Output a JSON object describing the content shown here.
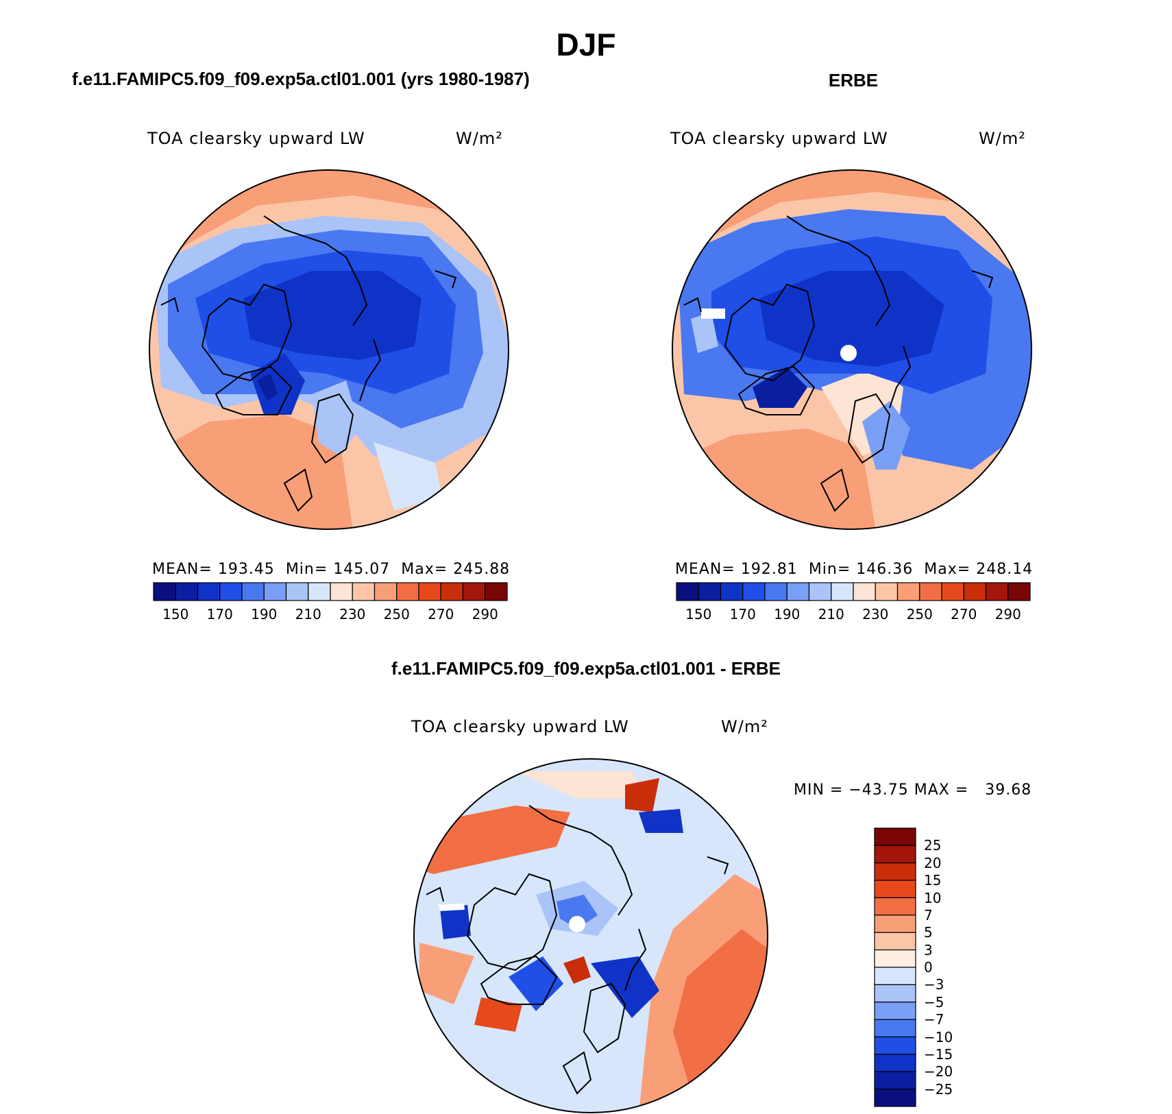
{
  "figure": {
    "main_title": "DJF"
  },
  "panels": [
    {
      "id": "model",
      "header": "f.e11.FAMIPC5.f09_f09.exp5a.ctl01.001 (yrs 1980-1987)",
      "variable": "TOA clearsky upward LW",
      "units": "W/m²",
      "stats": {
        "mean_label": "MEAN=",
        "mean": "193.45",
        "min_label": "Min=",
        "min": "145.07",
        "max_label": "Max=",
        "max": "245.88"
      }
    },
    {
      "id": "obs",
      "header": "ERBE",
      "variable": "TOA clearsky upward LW",
      "units": "W/m²",
      "stats": {
        "mean_label": "MEAN=",
        "mean": "192.81",
        "min_label": "Min=",
        "min": "146.36",
        "max_label": "Max=",
        "max": "248.14"
      }
    },
    {
      "id": "diff",
      "header": "f.e11.FAMIPC5.f09_f09.exp5a.ctl01.001 - ERBE",
      "variable": "TOA clearsky upward LW",
      "units": "W/m²",
      "stats_text": "MIN = −43.75 MAX =   39.68"
    }
  ],
  "colorbars": {
    "absolute": {
      "colors": [
        "#0a0f80",
        "#0a1fa0",
        "#0f33c7",
        "#1f4fe6",
        "#4a78f0",
        "#7aa0f5",
        "#aac4f8",
        "#d7e6fb",
        "#fde4d4",
        "#fbc6a8",
        "#f89f78",
        "#f26f45",
        "#e64a1a",
        "#c92e0a",
        "#a2170a",
        "#7a0505"
      ],
      "tick_labels": [
        "150",
        "170",
        "190",
        "210",
        "230",
        "250",
        "270",
        "290"
      ]
    },
    "difference": {
      "colors": [
        "#0a0f80",
        "#0a1fa0",
        "#0f33c7",
        "#1f4fe6",
        "#4a78f0",
        "#7aa0f5",
        "#aac4f8",
        "#d7e6fb",
        "#fdeee2",
        "#fbc6a8",
        "#f89f78",
        "#f26f45",
        "#e64a1a",
        "#c92e0a",
        "#a2170a",
        "#7a0505"
      ],
      "tick_labels": [
        "−25",
        "−20",
        "−15",
        "−10",
        "−7",
        "−5",
        "−3",
        "0",
        "3",
        "5",
        "7",
        "10",
        "15",
        "20",
        "25"
      ]
    }
  }
}
